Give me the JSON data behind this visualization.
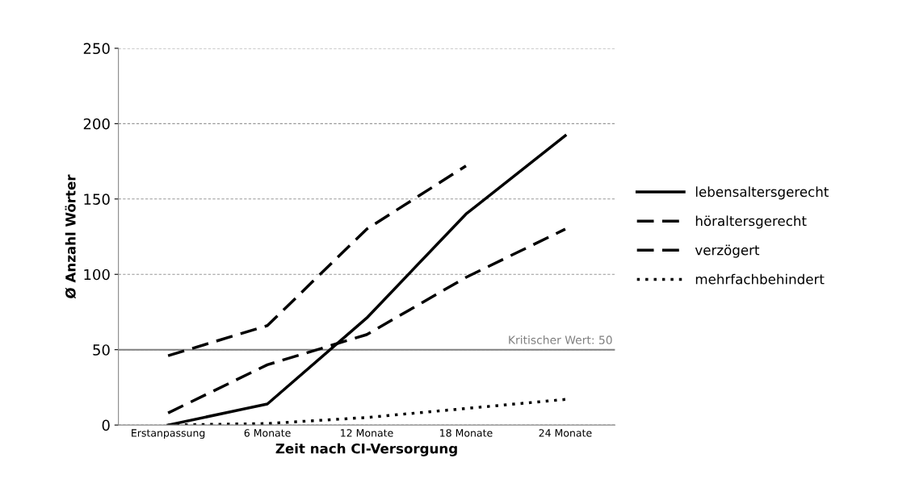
{
  "chart_data": {
    "type": "line",
    "xlabel": "Zeit nach CI-Versorgung",
    "ylabel": "Ø Anzahl Wörter",
    "categories": [
      "Erstanpassung",
      "6 Monate",
      "12 Monate",
      "18 Monate",
      "24 Monate"
    ],
    "series": [
      {
        "name": "lebensaltersgerecht",
        "color": "#000000",
        "line_style": "solid",
        "values": [
          0,
          14,
          71,
          140,
          192
        ]
      },
      {
        "name": "höraltersgerecht",
        "color": "#000000",
        "line_style": "dashed",
        "values": [
          46,
          66,
          130,
          172,
          null
        ]
      },
      {
        "name": "verzögert",
        "color": "#000000",
        "line_style": "dashed",
        "values": [
          8,
          40,
          60,
          98,
          130
        ]
      },
      {
        "name": "mehrfachbehindert",
        "color": "#000000",
        "line_style": "dotted",
        "values": [
          0,
          1,
          5,
          11,
          17
        ]
      }
    ],
    "ylim": [
      0,
      250
    ],
    "yticks": [
      0,
      50,
      100,
      150,
      200,
      250
    ],
    "grid": "y",
    "legend": "right",
    "ref_lines": [
      {
        "axis": "y",
        "value": 50,
        "label": "Kritischer Wert: 50",
        "color": "#808080"
      }
    ]
  }
}
